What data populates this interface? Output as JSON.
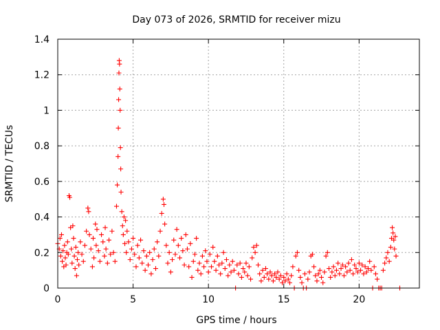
{
  "chart_data": {
    "type": "scatter",
    "title": "Day 073 of 2026, SRMTID for receiver mizu",
    "xlabel": "GPS time / hours",
    "ylabel": "SRMTID / TECUs",
    "xlim": [
      0,
      24
    ],
    "ylim": [
      0,
      1.4
    ],
    "xticks": [
      0,
      5,
      10,
      15,
      20
    ],
    "xtick_labels": [
      "0",
      "5",
      "10",
      "15",
      "20"
    ],
    "yticks": [
      0,
      0.2,
      0.4,
      0.6,
      0.8,
      1.0,
      1.2,
      1.4
    ],
    "ytick_labels": [
      "0",
      "0.2",
      "0.4",
      "0.6",
      "0.8",
      "1",
      "1.2",
      "1.4"
    ],
    "grid": true,
    "marker": "+",
    "series": [
      {
        "name": "SRMTID",
        "color": "#ff0000",
        "points": [
          [
            0.0,
            0.25
          ],
          [
            0.1,
            0.22
          ],
          [
            0.15,
            0.28
          ],
          [
            0.2,
            0.18
          ],
          [
            0.25,
            0.3
          ],
          [
            0.3,
            0.15
          ],
          [
            0.35,
            0.21
          ],
          [
            0.4,
            0.12
          ],
          [
            0.45,
            0.24
          ],
          [
            0.5,
            0.17
          ],
          [
            0.55,
            0.13
          ],
          [
            0.6,
            0.2
          ],
          [
            0.65,
            0.26
          ],
          [
            0.7,
            0.19
          ],
          [
            0.75,
            0.52
          ],
          [
            0.8,
            0.51
          ],
          [
            0.85,
            0.34
          ],
          [
            0.9,
            0.22
          ],
          [
            0.95,
            0.14
          ],
          [
            1.0,
            0.35
          ],
          [
            1.05,
            0.28
          ],
          [
            1.1,
            0.18
          ],
          [
            1.15,
            0.11
          ],
          [
            1.2,
            0.23
          ],
          [
            1.25,
            0.07
          ],
          [
            1.3,
            0.16
          ],
          [
            1.35,
            0.2
          ],
          [
            1.4,
            0.13
          ],
          [
            1.5,
            0.26
          ],
          [
            1.6,
            0.19
          ],
          [
            1.7,
            0.15
          ],
          [
            1.8,
            0.24
          ],
          [
            1.9,
            0.32
          ],
          [
            2.0,
            0.45
          ],
          [
            2.05,
            0.43
          ],
          [
            2.1,
            0.3
          ],
          [
            2.2,
            0.22
          ],
          [
            2.3,
            0.12
          ],
          [
            2.35,
            0.28
          ],
          [
            2.4,
            0.17
          ],
          [
            2.5,
            0.36
          ],
          [
            2.55,
            0.24
          ],
          [
            2.6,
            0.33
          ],
          [
            2.7,
            0.21
          ],
          [
            2.8,
            0.15
          ],
          [
            2.9,
            0.3
          ],
          [
            3.0,
            0.26
          ],
          [
            3.1,
            0.18
          ],
          [
            3.15,
            0.34
          ],
          [
            3.2,
            0.22
          ],
          [
            3.3,
            0.14
          ],
          [
            3.4,
            0.27
          ],
          [
            3.5,
            0.19
          ],
          [
            3.6,
            0.32
          ],
          [
            3.7,
            0.2
          ],
          [
            3.8,
            0.15
          ],
          [
            3.9,
            0.46
          ],
          [
            3.95,
            0.58
          ],
          [
            4.0,
            0.74
          ],
          [
            4.02,
            0.9
          ],
          [
            4.04,
            1.06
          ],
          [
            4.06,
            1.21
          ],
          [
            4.08,
            1.28
          ],
          [
            4.1,
            1.26
          ],
          [
            4.12,
            1.12
          ],
          [
            4.14,
            1.0
          ],
          [
            4.16,
            0.79
          ],
          [
            4.18,
            0.67
          ],
          [
            4.2,
            0.54
          ],
          [
            4.25,
            0.43
          ],
          [
            4.3,
            0.35
          ],
          [
            4.35,
            0.3
          ],
          [
            4.4,
            0.4
          ],
          [
            4.45,
            0.25
          ],
          [
            4.5,
            0.38
          ],
          [
            4.55,
            0.2
          ],
          [
            4.6,
            0.32
          ],
          [
            4.7,
            0.26
          ],
          [
            4.8,
            0.16
          ],
          [
            4.9,
            0.22
          ],
          [
            5.0,
            0.28
          ],
          [
            5.1,
            0.19
          ],
          [
            5.2,
            0.12
          ],
          [
            5.3,
            0.24
          ],
          [
            5.4,
            0.17
          ],
          [
            5.5,
            0.27
          ],
          [
            5.6,
            0.14
          ],
          [
            5.7,
            0.21
          ],
          [
            5.8,
            0.1
          ],
          [
            5.9,
            0.18
          ],
          [
            6.0,
            0.13
          ],
          [
            6.1,
            0.2
          ],
          [
            6.2,
            0.08
          ],
          [
            6.3,
            0.16
          ],
          [
            6.4,
            0.22
          ],
          [
            6.5,
            0.11
          ],
          [
            6.6,
            0.26
          ],
          [
            6.7,
            0.18
          ],
          [
            6.8,
            0.32
          ],
          [
            6.9,
            0.42
          ],
          [
            7.0,
            0.5
          ],
          [
            7.05,
            0.47
          ],
          [
            7.1,
            0.36
          ],
          [
            7.2,
            0.24
          ],
          [
            7.3,
            0.14
          ],
          [
            7.4,
            0.2
          ],
          [
            7.5,
            0.09
          ],
          [
            7.6,
            0.16
          ],
          [
            7.7,
            0.27
          ],
          [
            7.8,
            0.19
          ],
          [
            7.9,
            0.33
          ],
          [
            8.0,
            0.24
          ],
          [
            8.1,
            0.17
          ],
          [
            8.2,
            0.28
          ],
          [
            8.3,
            0.21
          ],
          [
            8.4,
            0.13
          ],
          [
            8.5,
            0.3
          ],
          [
            8.6,
            0.22
          ],
          [
            8.7,
            0.12
          ],
          [
            8.8,
            0.25
          ],
          [
            8.9,
            0.06
          ],
          [
            9.0,
            0.15
          ],
          [
            9.1,
            0.19
          ],
          [
            9.2,
            0.28
          ],
          [
            9.3,
            0.1
          ],
          [
            9.4,
            0.14
          ],
          [
            9.5,
            0.08
          ],
          [
            9.6,
            0.18
          ],
          [
            9.7,
            0.12
          ],
          [
            9.8,
            0.21
          ],
          [
            9.9,
            0.15
          ],
          [
            10.0,
            0.09
          ],
          [
            10.1,
            0.19
          ],
          [
            10.2,
            0.12
          ],
          [
            10.3,
            0.23
          ],
          [
            10.4,
            0.15
          ],
          [
            10.5,
            0.1
          ],
          [
            10.6,
            0.18
          ],
          [
            10.7,
            0.13
          ],
          [
            10.8,
            0.08
          ],
          [
            10.9,
            0.14
          ],
          [
            11.0,
            0.2
          ],
          [
            11.1,
            0.11
          ],
          [
            11.2,
            0.16
          ],
          [
            11.3,
            0.07
          ],
          [
            11.4,
            0.13
          ],
          [
            11.5,
            0.09
          ],
          [
            11.6,
            0.15
          ],
          [
            11.7,
            0.1
          ],
          [
            11.8,
            0.0
          ],
          [
            11.9,
            0.13
          ],
          [
            12.0,
            0.08
          ],
          [
            12.1,
            0.14
          ],
          [
            12.2,
            0.06
          ],
          [
            12.3,
            0.11
          ],
          [
            12.4,
            0.09
          ],
          [
            12.5,
            0.14
          ],
          [
            12.6,
            0.07
          ],
          [
            12.7,
            0.12
          ],
          [
            12.8,
            0.05
          ],
          [
            12.9,
            0.17
          ],
          [
            13.0,
            0.23
          ],
          [
            13.1,
            0.2
          ],
          [
            13.2,
            0.24
          ],
          [
            13.3,
            0.13
          ],
          [
            13.4,
            0.08
          ],
          [
            13.5,
            0.04
          ],
          [
            13.6,
            0.1
          ],
          [
            13.7,
            0.06
          ],
          [
            13.8,
            0.11
          ],
          [
            13.9,
            0.08
          ],
          [
            14.0,
            0.05
          ],
          [
            14.1,
            0.09
          ],
          [
            14.2,
            0.07
          ],
          [
            14.3,
            0.04
          ],
          [
            14.4,
            0.08
          ],
          [
            14.5,
            0.06
          ],
          [
            14.6,
            0.09
          ],
          [
            14.7,
            0.05
          ],
          [
            14.8,
            0.07
          ],
          [
            14.9,
            0.03
          ],
          [
            15.0,
            0.06
          ],
          [
            15.1,
            0.04
          ],
          [
            15.2,
            0.08
          ],
          [
            15.3,
            0.05
          ],
          [
            15.4,
            0.03
          ],
          [
            15.5,
            0.07
          ],
          [
            15.6,
            0.12
          ],
          [
            15.7,
            0.0
          ],
          [
            15.8,
            0.18
          ],
          [
            15.9,
            0.2
          ],
          [
            16.0,
            0.1
          ],
          [
            16.1,
            0.06
          ],
          [
            16.2,
            0.03
          ],
          [
            16.3,
            0.0
          ],
          [
            16.4,
            0.08
          ],
          [
            16.5,
            0.0
          ],
          [
            16.6,
            0.05
          ],
          [
            16.7,
            0.09
          ],
          [
            16.8,
            0.18
          ],
          [
            16.9,
            0.19
          ],
          [
            17.0,
            0.12
          ],
          [
            17.1,
            0.07
          ],
          [
            17.2,
            0.04
          ],
          [
            17.3,
            0.08
          ],
          [
            17.4,
            0.1
          ],
          [
            17.5,
            0.06
          ],
          [
            17.6,
            0.03
          ],
          [
            17.7,
            0.09
          ],
          [
            17.8,
            0.18
          ],
          [
            17.9,
            0.2
          ],
          [
            18.0,
            0.11
          ],
          [
            18.1,
            0.06
          ],
          [
            18.2,
            0.09
          ],
          [
            18.3,
            0.12
          ],
          [
            18.4,
            0.07
          ],
          [
            18.5,
            0.1
          ],
          [
            18.6,
            0.14
          ],
          [
            18.7,
            0.08
          ],
          [
            18.8,
            0.11
          ],
          [
            18.9,
            0.13
          ],
          [
            19.0,
            0.07
          ],
          [
            19.1,
            0.12
          ],
          [
            19.2,
            0.09
          ],
          [
            19.3,
            0.14
          ],
          [
            19.4,
            0.1
          ],
          [
            19.5,
            0.16
          ],
          [
            19.6,
            0.08
          ],
          [
            19.7,
            0.13
          ],
          [
            19.8,
            0.11
          ],
          [
            19.9,
            0.09
          ],
          [
            20.0,
            0.14
          ],
          [
            20.1,
            0.1
          ],
          [
            20.2,
            0.13
          ],
          [
            20.3,
            0.08
          ],
          [
            20.4,
            0.12
          ],
          [
            20.5,
            0.09
          ],
          [
            20.6,
            0.11
          ],
          [
            20.7,
            0.15
          ],
          [
            20.8,
            0.1
          ],
          [
            20.9,
            0.0
          ],
          [
            21.0,
            0.12
          ],
          [
            21.1,
            0.08
          ],
          [
            21.2,
            0.05
          ],
          [
            21.3,
            0.0
          ],
          [
            21.4,
            0.0
          ],
          [
            21.5,
            0.0
          ],
          [
            21.6,
            0.1
          ],
          [
            21.7,
            0.14
          ],
          [
            21.8,
            0.17
          ],
          [
            21.9,
            0.2
          ],
          [
            22.0,
            0.15
          ],
          [
            22.1,
            0.23
          ],
          [
            22.15,
            0.28
          ],
          [
            22.2,
            0.34
          ],
          [
            22.25,
            0.31
          ],
          [
            22.3,
            0.27
          ],
          [
            22.35,
            0.22
          ],
          [
            22.4,
            0.29
          ],
          [
            22.45,
            0.18
          ],
          [
            22.7,
            0.0
          ]
        ]
      }
    ]
  }
}
